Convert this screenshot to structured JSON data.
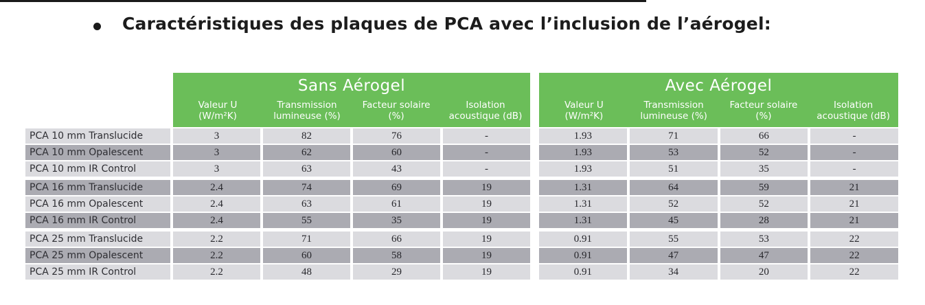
{
  "page": {
    "title": "Caractéristiques des plaques de PCA avec l’inclusion de l’aérogel:"
  },
  "colors": {
    "header_green": "#6BBE59",
    "row_light": "#DBDBDF",
    "row_dark": "#ABABB2",
    "header_text": "#FFFFFF",
    "body_text": "#2E2E33",
    "top_line": "#1A1A1A"
  },
  "table": {
    "groups": [
      {
        "id": "sans-aerogel",
        "label": "Sans Aérogel"
      },
      {
        "id": "avec-aerogel",
        "label": "Avec Aérogel"
      }
    ],
    "columns": [
      {
        "id": "valeur-u",
        "line1": "Valeur U",
        "line2": "(W/m²K)"
      },
      {
        "id": "transmission-lumineuse",
        "line1": "Transmission",
        "line2": "lumineuse (%)"
      },
      {
        "id": "facteur-solaire",
        "line1": "Facteur solaire",
        "line2": "(%)"
      },
      {
        "id": "isolation-acoustique",
        "line1": "Isolation",
        "line2": "acoustique (dB)"
      }
    ],
    "rows": [
      {
        "label": "PCA 10 mm Translucide",
        "shade": "light",
        "group_start": false,
        "sans": [
          "3",
          "82",
          "76",
          "-"
        ],
        "avec": [
          "1.93",
          "71",
          "66",
          "-"
        ]
      },
      {
        "label": "PCA 10 mm Opalescent",
        "shade": "dark",
        "group_start": false,
        "sans": [
          "3",
          "62",
          "60",
          "-"
        ],
        "avec": [
          "1.93",
          "53",
          "52",
          "-"
        ]
      },
      {
        "label": "PCA 10 mm IR Control",
        "shade": "light",
        "group_start": false,
        "sans": [
          "3",
          "63",
          "43",
          "-"
        ],
        "avec": [
          "1.93",
          "51",
          "35",
          "-"
        ]
      },
      {
        "label": "PCA 16 mm Translucide",
        "shade": "dark",
        "group_start": true,
        "sans": [
          "2.4",
          "74",
          "69",
          "19"
        ],
        "avec": [
          "1.31",
          "64",
          "59",
          "21"
        ]
      },
      {
        "label": "PCA 16 mm Opalescent",
        "shade": "light",
        "group_start": false,
        "sans": [
          "2.4",
          "63",
          "61",
          "19"
        ],
        "avec": [
          "1.31",
          "52",
          "52",
          "21"
        ]
      },
      {
        "label": "PCA 16 mm IR Control",
        "shade": "dark",
        "group_start": false,
        "sans": [
          "2.4",
          "55",
          "35",
          "19"
        ],
        "avec": [
          "1.31",
          "45",
          "28",
          "21"
        ]
      },
      {
        "label": "PCA 25 mm Translucide",
        "shade": "light",
        "group_start": true,
        "sans": [
          "2.2",
          "71",
          "66",
          "19"
        ],
        "avec": [
          "0.91",
          "55",
          "53",
          "22"
        ]
      },
      {
        "label": "PCA 25 mm Opalescent",
        "shade": "dark",
        "group_start": false,
        "sans": [
          "2.2",
          "60",
          "58",
          "19"
        ],
        "avec": [
          "0.91",
          "47",
          "47",
          "22"
        ]
      },
      {
        "label": "PCA 25 mm IR Control",
        "shade": "light",
        "group_start": false,
        "sans": [
          "2.2",
          "48",
          "29",
          "19"
        ],
        "avec": [
          "0.91",
          "34",
          "20",
          "22"
        ]
      }
    ]
  }
}
